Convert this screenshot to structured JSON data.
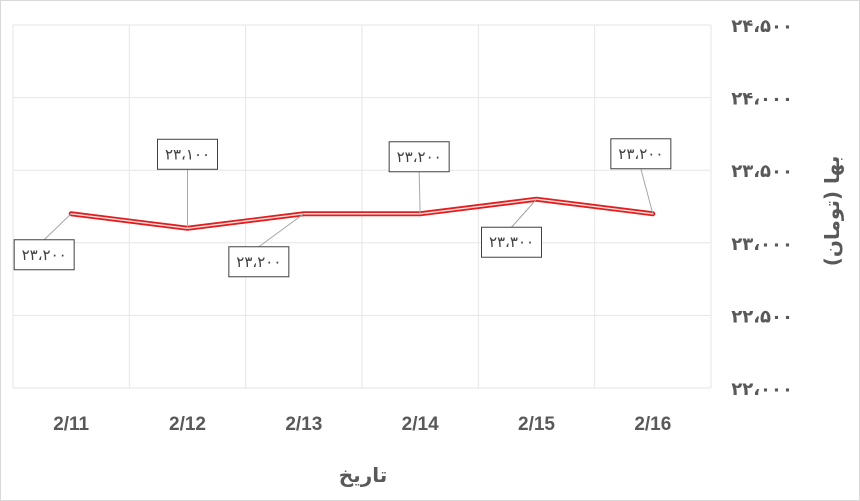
{
  "chart_data": {
    "type": "line",
    "categories": [
      "2/11",
      "2/12",
      "2/13",
      "2/14",
      "2/15",
      "2/16"
    ],
    "series": [
      {
        "values": [
          23200,
          23100,
          23200,
          23200,
          23300,
          23200
        ]
      }
    ],
    "data_labels": [
      "۲۳،۲۰۰",
      "۲۳،۱۰۰",
      "۲۳،۲۰۰",
      "۲۳،۲۰۰",
      "۲۳،۳۰۰",
      "۲۳،۲۰۰"
    ],
    "xlabel": "تاریخ",
    "ylabel": "بها (تومان)",
    "ylim": [
      22000,
      24500
    ],
    "y_ticks": [
      22000,
      22500,
      23000,
      23500,
      24000,
      24500
    ],
    "y_tick_labels": [
      "۲۲،۰۰۰",
      "۲۲،۵۰۰",
      "۲۳،۰۰۰",
      "۲۳،۵۰۰",
      "۲۴،۰۰۰",
      "۲۴،۵۰۰"
    ],
    "y_axis_position": "right",
    "grid": true,
    "legend": "none",
    "colors": {
      "line": "#e02020",
      "grid": "#e6e6e6",
      "text": "#595959"
    }
  }
}
